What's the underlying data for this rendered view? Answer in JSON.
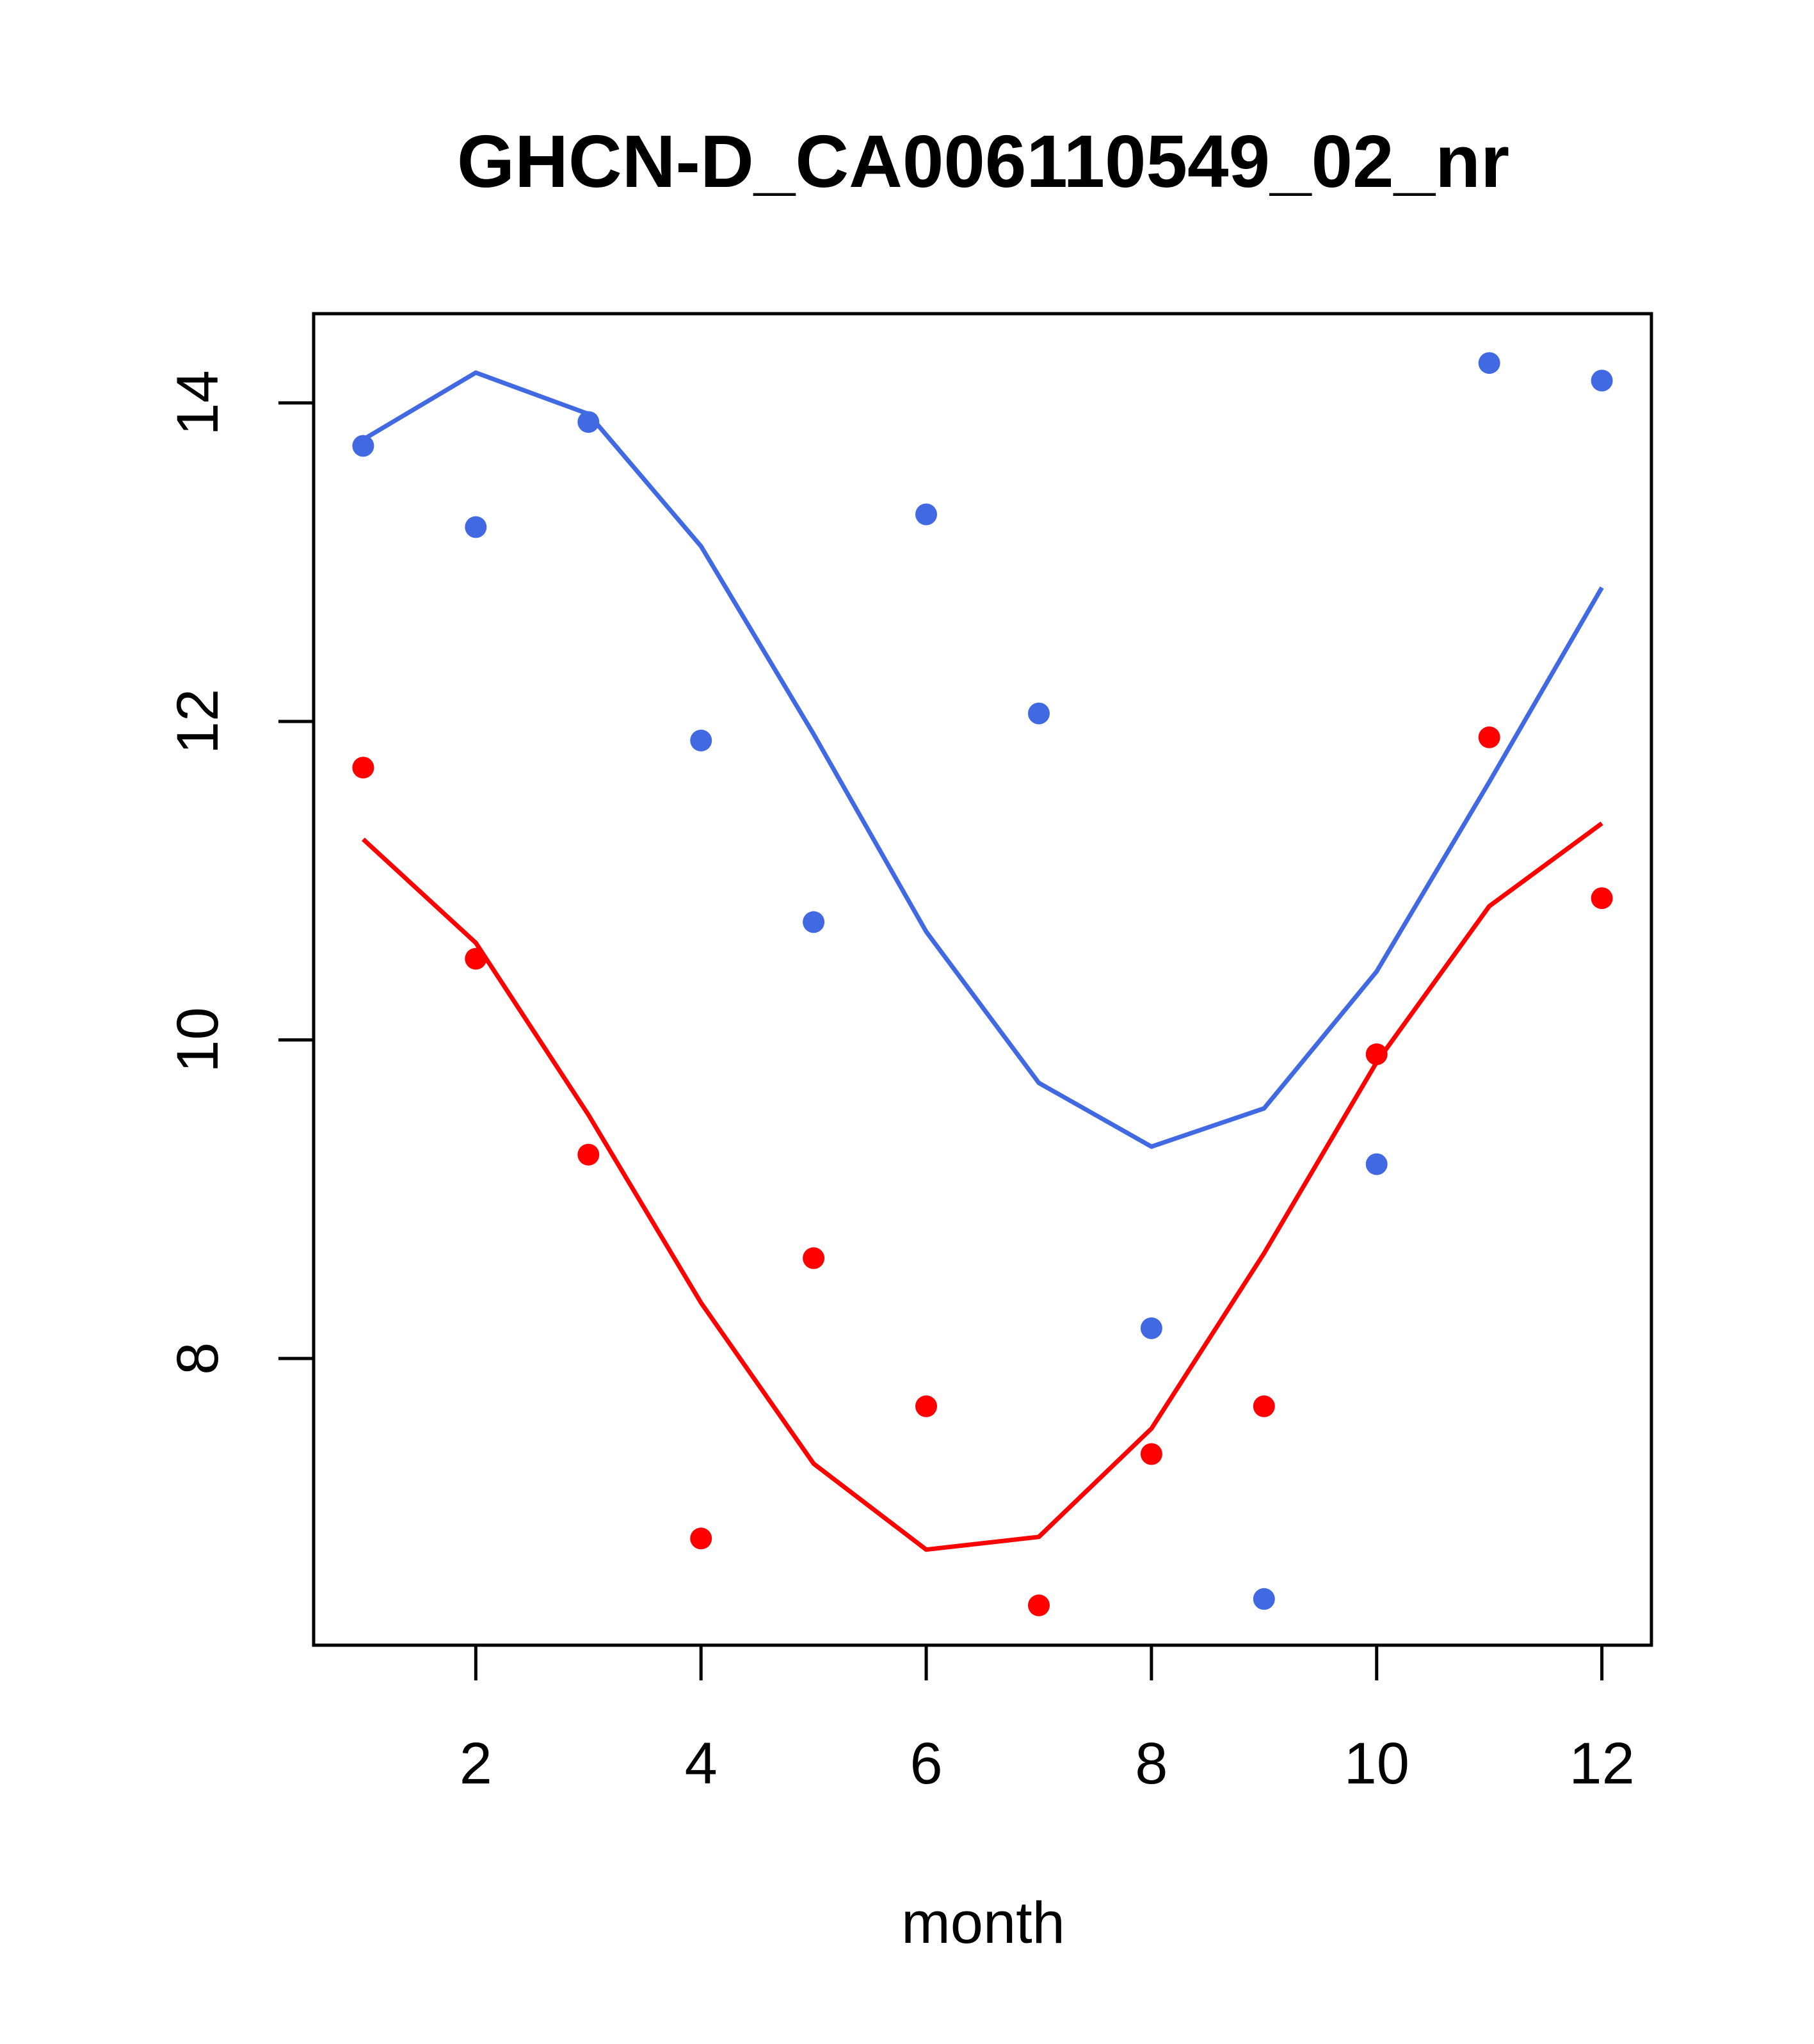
{
  "chart_data": {
    "type": "scatter",
    "title": "GHCN-D_CA006110549_02_nr",
    "xlabel": "month",
    "ylabel": "",
    "xlim": [
      0.56,
      12.44
    ],
    "ylim": [
      6.2,
      14.56
    ],
    "x_ticks": [
      2,
      4,
      6,
      8,
      10,
      12
    ],
    "y_ticks": [
      8,
      10,
      12,
      14
    ],
    "x_tick_labels": [
      "2",
      "4",
      "6",
      "8",
      "10",
      "12"
    ],
    "y_tick_labels": [
      "8",
      "10",
      "12",
      "14"
    ],
    "grid": false,
    "legend": "none",
    "series": [
      {
        "color": "#4169e1",
        "points": {
          "x": [
            1,
            2,
            3,
            4,
            5,
            6,
            7,
            8,
            9,
            10,
            11,
            12
          ],
          "y": [
            13.73,
            13.22,
            13.88,
            11.88,
            10.74,
            13.3,
            12.05,
            8.19,
            6.49,
            9.22,
            14.25,
            14.14
          ]
        },
        "fit": {
          "x": [
            1,
            2,
            3,
            4,
            5,
            6,
            7,
            8,
            9,
            10,
            11,
            12
          ],
          "y": [
            13.77,
            14.19,
            13.93,
            13.1,
            11.92,
            10.68,
            9.73,
            9.33,
            9.57,
            10.43,
            11.62,
            12.84
          ]
        }
      },
      {
        "color": "#ff0000",
        "points": {
          "x": [
            1,
            2,
            3,
            4,
            5,
            6,
            7,
            8,
            9,
            10,
            11,
            12
          ],
          "y": [
            11.71,
            10.51,
            9.28,
            6.87,
            8.63,
            7.7,
            6.45,
            7.4,
            7.7,
            9.91,
            11.9,
            10.89
          ]
        },
        "fit": {
          "x": [
            1,
            2,
            3,
            4,
            5,
            6,
            7,
            8,
            9,
            10,
            11,
            12
          ],
          "y": [
            11.26,
            10.61,
            9.53,
            8.35,
            7.34,
            6.8,
            6.88,
            7.56,
            8.66,
            9.86,
            10.84,
            11.36
          ]
        }
      }
    ]
  }
}
